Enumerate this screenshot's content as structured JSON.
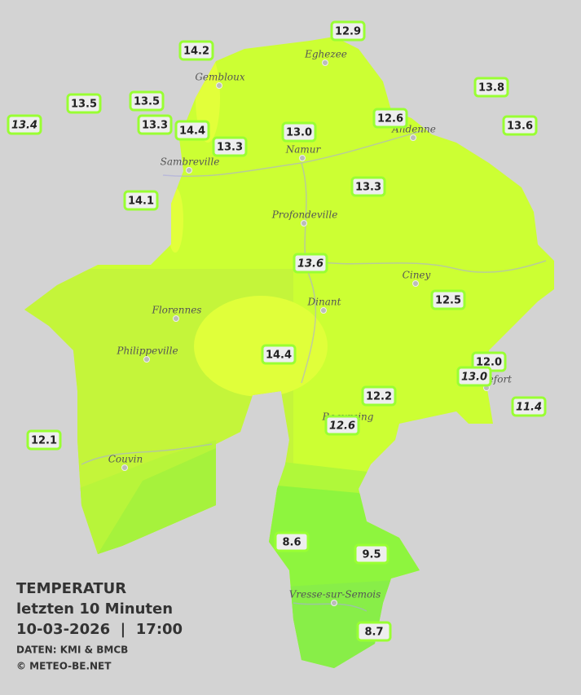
{
  "legend": {
    "title": "TEMPERATUR",
    "subtitle": "letzten 10 Minuten",
    "datetime": "10-03-2026  |  17:00",
    "source": "DATEN: KMI & BMCB",
    "copyright": "© METEO-BE.NET"
  },
  "cities": [
    "Eghezee",
    "Gembloux",
    "Andenne",
    "Namur",
    "Sambreville",
    "Profondeville",
    "Ciney",
    "Dinant",
    "Florennes",
    "Philippeville",
    "Rochefort",
    "Beauraing",
    "Couvin",
    "Vresse-sur-Semois"
  ],
  "stations": [
    "13.4",
    "13.5",
    "14.2",
    "12.9",
    "13.5",
    "13.3",
    "14.4",
    "13.3",
    "13.0",
    "12.6",
    "13.8",
    "13.6",
    "14.1",
    "13.3",
    "13.6",
    "12.5",
    "14.4",
    "12.0",
    "13.0",
    "11.4",
    "12.2",
    "12.6",
    "12.1",
    "8.6",
    "9.5",
    "8.7"
  ]
}
